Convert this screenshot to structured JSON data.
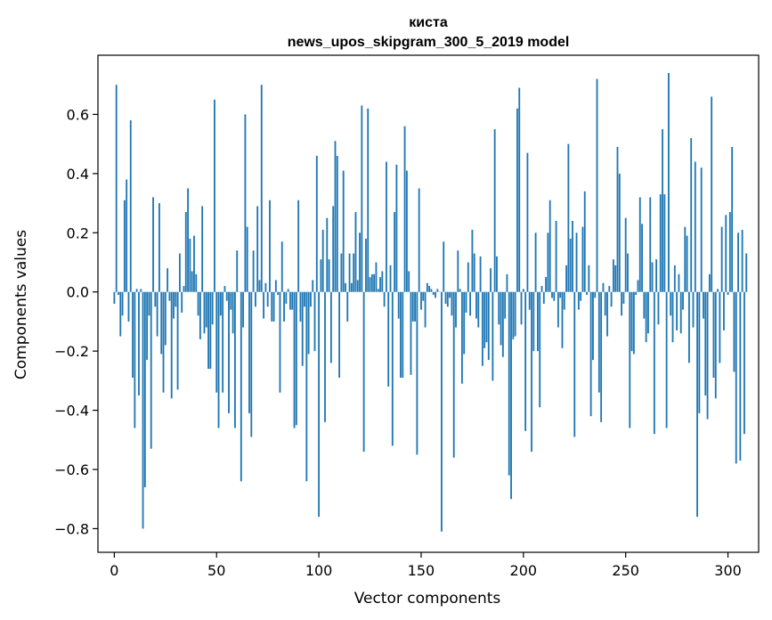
{
  "chart_data": {
    "type": "bar",
    "title_line1": "киста",
    "title_line2": "news_upos_skipgram_300_5_2019 model",
    "xlabel": "Vector components",
    "ylabel": "Components values",
    "xlim": [
      -8,
      315
    ],
    "ylim": [
      -0.88,
      0.8
    ],
    "xticks": [
      0,
      50,
      100,
      150,
      200,
      250,
      300
    ],
    "yticks": [
      -0.8,
      -0.6,
      -0.4,
      -0.2,
      0.0,
      0.2,
      0.4,
      0.6
    ],
    "ytick_labels": [
      "−0.8",
      "−0.6",
      "−0.4",
      "−0.2",
      "0.0",
      "0.2",
      "0.4",
      "0.6"
    ],
    "xtick_labels": [
      "0",
      "50",
      "100",
      "150",
      "200",
      "250",
      "300"
    ],
    "bar_color": "#1f77b4",
    "grid": false,
    "values": [
      -0.04,
      0.7,
      -0.01,
      -0.15,
      -0.08,
      0.31,
      0.38,
      -0.1,
      0.58,
      -0.29,
      -0.46,
      0.01,
      -0.35,
      0.01,
      -0.8,
      -0.66,
      -0.23,
      -0.08,
      -0.53,
      0.32,
      -0.05,
      -0.15,
      0.3,
      -0.21,
      -0.34,
      -0.18,
      0.08,
      -0.03,
      -0.36,
      -0.09,
      -0.05,
      -0.33,
      0.13,
      -0.07,
      0.02,
      0.27,
      0.35,
      0.18,
      0.07,
      0.19,
      0.06,
      -0.08,
      -0.16,
      0.29,
      -0.14,
      -0.12,
      -0.26,
      -0.26,
      -0.11,
      0.65,
      -0.34,
      -0.46,
      -0.08,
      -0.34,
      0.02,
      -0.03,
      -0.41,
      -0.06,
      -0.14,
      -0.46,
      0.14,
      0.0,
      -0.64,
      -0.12,
      0.6,
      0.22,
      -0.41,
      -0.49,
      0.14,
      -0.05,
      0.29,
      0.04,
      0.7,
      -0.09,
      0.03,
      -0.05,
      0.31,
      -0.1,
      -0.1,
      0.04,
      -0.01,
      -0.34,
      0.17,
      -0.1,
      -0.04,
      0.01,
      -0.06,
      -0.06,
      -0.46,
      -0.45,
      0.31,
      -0.1,
      -0.25,
      -0.05,
      -0.64,
      -0.21,
      -0.05,
      0.04,
      -0.2,
      0.46,
      -0.76,
      0.11,
      0.21,
      -0.44,
      0.25,
      0.11,
      -0.24,
      0.29,
      0.51,
      0.46,
      -0.29,
      0.13,
      0.41,
      0.03,
      -0.1,
      0.13,
      0.03,
      0.13,
      0.27,
      0.04,
      0.2,
      0.63,
      -0.54,
      0.18,
      0.62,
      0.05,
      0.06,
      0.06,
      0.1,
      0.01,
      0.05,
      0.07,
      -0.05,
      0.44,
      -0.32,
      0.09,
      -0.52,
      0.27,
      0.43,
      -0.09,
      -0.29,
      -0.29,
      0.56,
      0.41,
      0.07,
      -0.28,
      -0.1,
      -0.1,
      -0.55,
      0.35,
      -0.06,
      -0.03,
      -0.12,
      0.03,
      0.02,
      0.01,
      -0.01,
      -0.02,
      0.01,
      0.0,
      -0.81,
      0.17,
      -0.04,
      -0.05,
      -0.02,
      -0.08,
      -0.56,
      -0.12,
      0.14,
      0.01,
      -0.31,
      -0.21,
      -0.07,
      0.1,
      -0.08,
      0.21,
      0.13,
      -0.09,
      -0.12,
      0.12,
      -0.25,
      -0.19,
      -0.17,
      -0.23,
      0.08,
      -0.3,
      0.55,
      0.12,
      -0.11,
      -0.18,
      -0.22,
      -0.09,
      0.06,
      -0.62,
      -0.7,
      -0.16,
      -0.15,
      0.62,
      0.69,
      -0.11,
      0.01,
      -0.47,
      0.47,
      -0.06,
      -0.54,
      -0.2,
      0.2,
      -0.2,
      -0.39,
      0.02,
      -0.04,
      0.05,
      0.2,
      0.31,
      -0.02,
      -0.03,
      0.24,
      -0.12,
      -0.02,
      -0.19,
      -0.06,
      0.09,
      0.5,
      0.18,
      0.24,
      -0.49,
      0.2,
      -0.06,
      -0.03,
      0.22,
      0.34,
      -0.01,
      0.09,
      -0.42,
      -0.23,
      -0.02,
      0.72,
      -0.34,
      -0.44,
      0.03,
      -0.08,
      -0.15,
      0.02,
      -0.05,
      0.11,
      0.09,
      0.49,
      0.4,
      -0.08,
      -0.04,
      0.25,
      0.13,
      -0.46,
      -0.2,
      -0.21,
      -0.01,
      0.04,
      0.32,
      0.23,
      -0.09,
      -0.17,
      -0.14,
      0.32,
      0.1,
      -0.48,
      0.11,
      -0.11,
      0.33,
      0.55,
      0.33,
      -0.46,
      0.74,
      -0.08,
      -0.17,
      0.09,
      -0.13,
      0.06,
      -0.14,
      -0.06,
      0.22,
      0.19,
      -0.24,
      0.52,
      -0.12,
      0.44,
      -0.76,
      -0.41,
      0.42,
      -0.09,
      -0.35,
      -0.43,
      0.06,
      0.66,
      -0.29,
      -0.36,
      0.01,
      -0.24,
      0.22,
      -0.13,
      0.26,
      -0.01,
      0.27,
      0.49,
      -0.27,
      -0.58,
      0.2,
      -0.57,
      0.21,
      -0.48,
      0.13
    ]
  }
}
